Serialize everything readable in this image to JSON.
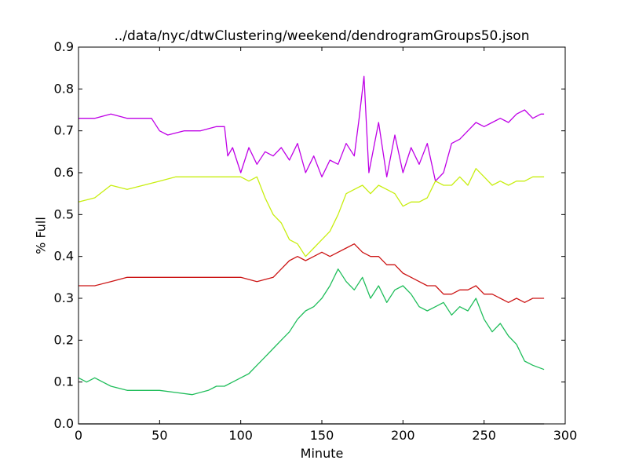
{
  "chart_data": {
    "type": "line",
    "title": "../data/nyc/dtwClustering/weekend/dendrogramGroups50.json",
    "xlabel": "Minute",
    "ylabel": "% Full",
    "xlim": [
      0,
      300
    ],
    "ylim": [
      0.0,
      0.9
    ],
    "xticks": [
      "0",
      "50",
      "100",
      "150",
      "200",
      "250",
      "300"
    ],
    "yticks": [
      "0.0",
      "0.1",
      "0.2",
      "0.3",
      "0.4",
      "0.5",
      "0.6",
      "0.7",
      "0.8",
      "0.9"
    ],
    "grid": false,
    "legend": "none",
    "series": [
      {
        "color": "#bf00e6",
        "x": [
          0,
          10,
          20,
          30,
          45,
          50,
          55,
          65,
          75,
          85,
          90,
          92,
          95,
          100,
          105,
          110,
          115,
          120,
          125,
          130,
          135,
          140,
          145,
          150,
          155,
          160,
          165,
          170,
          173,
          176,
          179,
          182,
          185,
          190,
          195,
          200,
          205,
          210,
          215,
          220,
          225,
          230,
          235,
          240,
          245,
          250,
          255,
          260,
          265,
          270,
          275,
          280,
          285,
          287
        ],
        "y": [
          0.73,
          0.73,
          0.74,
          0.73,
          0.73,
          0.7,
          0.69,
          0.7,
          0.7,
          0.71,
          0.71,
          0.64,
          0.66,
          0.6,
          0.66,
          0.62,
          0.65,
          0.64,
          0.66,
          0.63,
          0.67,
          0.6,
          0.64,
          0.59,
          0.63,
          0.62,
          0.67,
          0.64,
          0.73,
          0.83,
          0.6,
          0.66,
          0.72,
          0.59,
          0.69,
          0.6,
          0.66,
          0.62,
          0.67,
          0.58,
          0.6,
          0.67,
          0.68,
          0.7,
          0.72,
          0.71,
          0.72,
          0.73,
          0.72,
          0.74,
          0.75,
          0.73,
          0.74,
          0.74
        ]
      },
      {
        "color": "#c8ee10",
        "x": [
          0,
          10,
          20,
          30,
          40,
          50,
          60,
          70,
          80,
          90,
          100,
          105,
          110,
          115,
          120,
          125,
          130,
          135,
          140,
          145,
          150,
          155,
          160,
          165,
          170,
          175,
          180,
          185,
          190,
          195,
          200,
          205,
          210,
          215,
          220,
          225,
          230,
          235,
          240,
          245,
          250,
          255,
          260,
          265,
          270,
          275,
          280,
          287
        ],
        "y": [
          0.53,
          0.54,
          0.57,
          0.56,
          0.57,
          0.58,
          0.59,
          0.59,
          0.59,
          0.59,
          0.59,
          0.58,
          0.59,
          0.54,
          0.5,
          0.48,
          0.44,
          0.43,
          0.4,
          0.42,
          0.44,
          0.46,
          0.5,
          0.55,
          0.56,
          0.57,
          0.55,
          0.57,
          0.56,
          0.55,
          0.52,
          0.53,
          0.53,
          0.54,
          0.58,
          0.57,
          0.57,
          0.59,
          0.57,
          0.61,
          0.59,
          0.57,
          0.58,
          0.57,
          0.58,
          0.58,
          0.59,
          0.59
        ]
      },
      {
        "color": "#cc1414",
        "x": [
          0,
          10,
          20,
          30,
          40,
          50,
          60,
          70,
          80,
          90,
          100,
          110,
          120,
          125,
          130,
          135,
          140,
          145,
          150,
          155,
          160,
          165,
          170,
          175,
          180,
          185,
          190,
          195,
          200,
          205,
          210,
          215,
          220,
          225,
          230,
          235,
          240,
          245,
          250,
          255,
          260,
          265,
          270,
          275,
          280,
          287
        ],
        "y": [
          0.33,
          0.33,
          0.34,
          0.35,
          0.35,
          0.35,
          0.35,
          0.35,
          0.35,
          0.35,
          0.35,
          0.34,
          0.35,
          0.37,
          0.39,
          0.4,
          0.39,
          0.4,
          0.41,
          0.4,
          0.41,
          0.42,
          0.43,
          0.41,
          0.4,
          0.4,
          0.38,
          0.38,
          0.36,
          0.35,
          0.34,
          0.33,
          0.33,
          0.31,
          0.31,
          0.32,
          0.32,
          0.33,
          0.31,
          0.31,
          0.3,
          0.29,
          0.3,
          0.29,
          0.3,
          0.3
        ]
      },
      {
        "color": "#1fbd5a",
        "x": [
          0,
          5,
          10,
          15,
          20,
          30,
          40,
          50,
          60,
          70,
          80,
          85,
          90,
          95,
          100,
          105,
          110,
          115,
          120,
          125,
          130,
          135,
          140,
          145,
          150,
          155,
          160,
          165,
          170,
          175,
          180,
          185,
          190,
          195,
          200,
          205,
          210,
          215,
          220,
          225,
          230,
          235,
          240,
          245,
          250,
          255,
          260,
          265,
          270,
          275,
          280,
          287
        ],
        "y": [
          0.11,
          0.1,
          0.11,
          0.1,
          0.09,
          0.08,
          0.08,
          0.08,
          0.075,
          0.07,
          0.08,
          0.09,
          0.09,
          0.1,
          0.11,
          0.12,
          0.14,
          0.16,
          0.18,
          0.2,
          0.22,
          0.25,
          0.27,
          0.28,
          0.3,
          0.33,
          0.37,
          0.34,
          0.32,
          0.35,
          0.3,
          0.33,
          0.29,
          0.32,
          0.33,
          0.31,
          0.28,
          0.27,
          0.28,
          0.29,
          0.26,
          0.28,
          0.27,
          0.3,
          0.25,
          0.22,
          0.24,
          0.21,
          0.19,
          0.15,
          0.14,
          0.13
        ]
      }
    ]
  }
}
